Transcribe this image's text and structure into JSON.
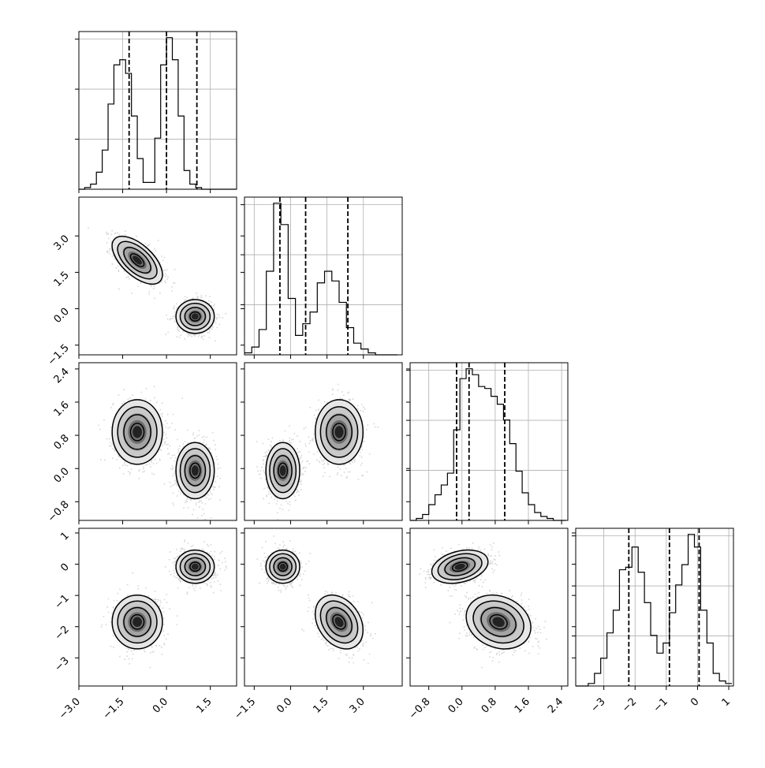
{
  "chart_data": {
    "type": "corner",
    "parameters": 4,
    "dashed_quantiles": "3 per histogram",
    "grid": true,
    "axes_ranges": [
      [
        -3.0,
        2.4
      ],
      [
        -1.9,
        4.6
      ],
      [
        -1.25,
        2.55
      ],
      [
        -3.9,
        1.15
      ]
    ],
    "x_ticks": [
      [
        -3.0,
        -1.5,
        0.0,
        1.5
      ],
      [
        -1.5,
        0.0,
        1.5,
        3.0
      ],
      [
        -0.8,
        0.0,
        0.8,
        1.6,
        2.4
      ],
      [
        -3,
        -2,
        -1,
        0,
        1
      ]
    ],
    "x_tick_labels": [
      [
        "−3.0",
        "−1.5",
        "0.0",
        "1.5"
      ],
      [
        "−1.5",
        "0.0",
        "1.5",
        "3.0"
      ],
      [
        "−0.8",
        "0.0",
        "0.8",
        "1.6",
        "2.4"
      ],
      [
        "−3",
        "−2",
        "−1",
        "0",
        "1"
      ]
    ],
    "y_ticks": [
      null,
      [
        -1.5,
        0.0,
        1.5,
        3.0
      ],
      [
        -0.8,
        0.0,
        0.8,
        1.6,
        2.4
      ],
      [
        -3,
        -2,
        -1,
        0,
        1
      ]
    ],
    "y_tick_labels": [
      null,
      [
        "−1.5",
        "0.0",
        "1.5",
        "3.0"
      ],
      [
        "−0.8",
        "0.0",
        "0.8",
        "1.6",
        "2.4"
      ],
      [
        "−3",
        "−2",
        "−1",
        "0",
        "1"
      ]
    ],
    "diagonal": [
      {
        "param": 0,
        "bin_edges": [
          -3.0,
          -2.8,
          -2.6,
          -2.4,
          -2.2,
          -2.0,
          -1.8,
          -1.6,
          -1.4,
          -1.2,
          -1.0,
          -0.8,
          -0.6,
          -0.4,
          -0.2,
          0.0,
          0.2,
          0.4,
          0.6,
          0.8,
          1.0,
          1.2,
          1.4,
          1.6,
          1.8,
          2.0,
          2.2,
          2.4
        ],
        "counts": [
          0,
          1,
          3,
          10,
          23,
          50,
          73,
          76,
          68,
          43,
          18,
          4,
          4,
          30,
          73,
          89,
          76,
          43,
          11,
          3,
          1,
          0,
          0,
          0,
          0,
          0,
          0
        ],
        "quantiles": [
          -1.28,
          0.0,
          1.04
        ]
      },
      {
        "param": 1,
        "bin_edges": [
          -1.9,
          -1.6,
          -1.3,
          -1.0,
          -0.7,
          -0.4,
          -0.1,
          0.2,
          0.5,
          0.8,
          1.1,
          1.4,
          1.7,
          2.0,
          2.3,
          2.6,
          2.9,
          3.2,
          3.5,
          3.8,
          4.1,
          4.4
        ],
        "counts": [
          1,
          4,
          13,
          43,
          78,
          67,
          29,
          10,
          16,
          22,
          37,
          43,
          38,
          27,
          14,
          6,
          3,
          1,
          0,
          0,
          0
        ],
        "quantiles": [
          -0.44,
          0.62,
          2.36
        ]
      },
      {
        "param": 2,
        "bin_edges": [
          -1.25,
          -1.1,
          -0.95,
          -0.8,
          -0.65,
          -0.5,
          -0.35,
          -0.2,
          -0.05,
          0.1,
          0.25,
          0.4,
          0.55,
          0.7,
          0.85,
          1.0,
          1.15,
          1.3,
          1.45,
          1.6,
          1.75,
          1.9,
          2.05,
          2.2,
          2.35,
          2.5
        ],
        "counts": [
          0,
          1,
          3,
          8,
          13,
          18,
          24,
          46,
          72,
          77,
          74,
          68,
          67,
          63,
          59,
          51,
          39,
          25,
          14,
          8,
          4,
          2,
          1,
          0,
          0
        ],
        "quantiles": [
          -0.13,
          0.17,
          1.03
        ]
      },
      {
        "param": 3,
        "bin_edges": [
          -3.9,
          -3.7,
          -3.5,
          -3.3,
          -3.1,
          -2.9,
          -2.7,
          -2.5,
          -2.3,
          -2.1,
          -1.9,
          -1.7,
          -1.5,
          -1.3,
          -1.1,
          -0.9,
          -0.7,
          -0.5,
          -0.3,
          -0.1,
          0.1,
          0.3,
          0.5,
          0.7,
          0.9,
          1.1
        ],
        "counts": [
          0,
          0,
          1,
          5,
          11,
          21,
          30,
          46,
          47,
          55,
          45,
          33,
          20,
          13,
          17,
          29,
          40,
          48,
          60,
          55,
          30,
          17,
          5,
          2,
          1
        ],
        "quantiles": [
          -2.2,
          -0.9,
          0.05
        ]
      }
    ],
    "clusters": [
      {
        "mean": [
          -1.0,
          2.0,
          0.88,
          -1.85
        ],
        "std": [
          0.42,
          0.48,
          0.38,
          0.42
        ],
        "corr": {
          "0-1": -0.6,
          "0-2": 0.0,
          "0-3": 0.0,
          "1-2": 0.0,
          "1-3": -0.3,
          "2-3": -0.2
        }
      },
      {
        "mean": [
          0.98,
          -0.32,
          -0.05,
          -0.08
        ],
        "std": [
          0.32,
          0.34,
          0.33,
          0.26
        ],
        "corr": {
          "0-1": 0.0,
          "0-2": 0.0,
          "0-3": 0.0,
          "1-2": 0.0,
          "1-3": 0.0,
          "2-3": 0.3
        }
      }
    ]
  }
}
